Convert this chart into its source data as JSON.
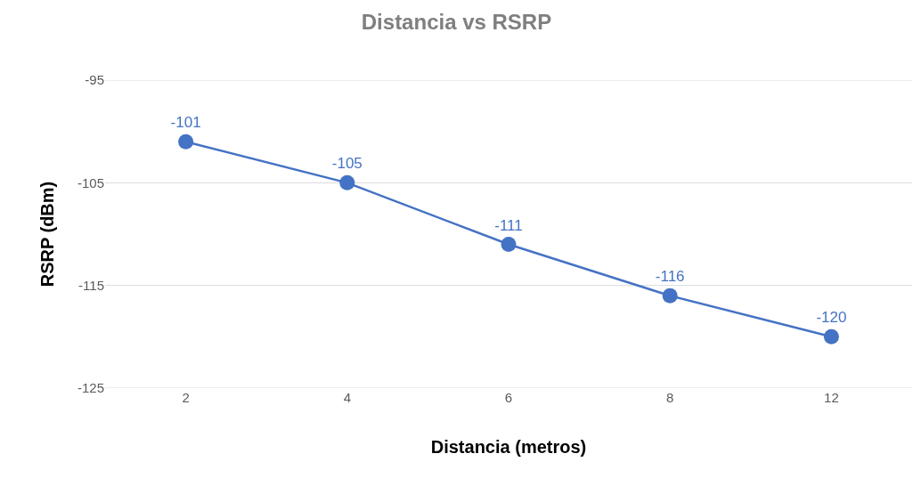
{
  "chart_data": {
    "type": "line",
    "title": "Distancia vs RSRP",
    "xlabel": "Distancia (metros)",
    "ylabel": "RSRP (dBm)",
    "categories": [
      "2",
      "4",
      "6",
      "8",
      "12"
    ],
    "series": [
      {
        "color": "#4472c4",
        "values": [
          -101,
          -105,
          -111,
          -116,
          -120
        ]
      }
    ],
    "ylim": [
      -125,
      -95
    ],
    "yticks": [
      -95,
      -105,
      -115,
      -125
    ],
    "grid": "y",
    "marker": "circle",
    "line_style": "solid",
    "data_labels": true
  }
}
